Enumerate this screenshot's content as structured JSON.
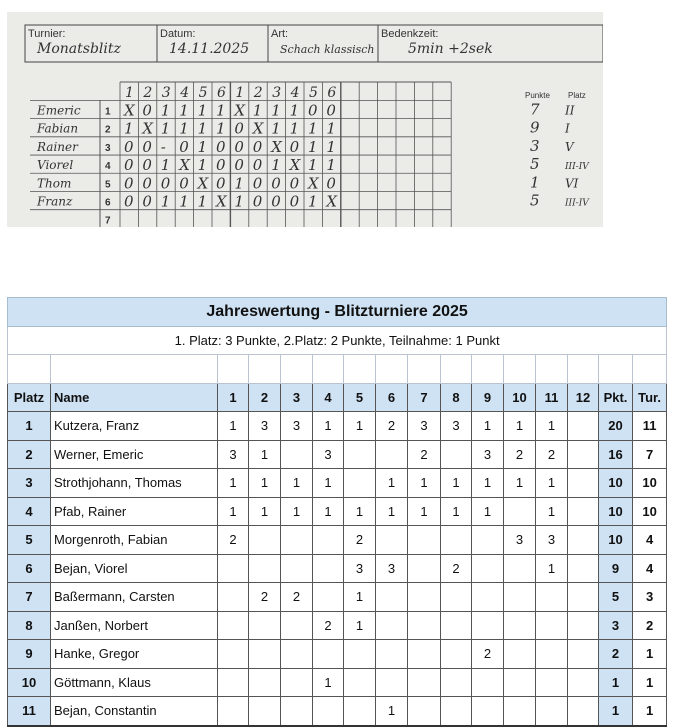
{
  "scoresheet_photo": {
    "fields": [
      {
        "label": "Turnier:",
        "value": "Monatsblitz"
      },
      {
        "label": "Datum:",
        "value": "14.11.2025"
      },
      {
        "label": "Art:",
        "value": "Schach klassisch"
      },
      {
        "label": "Bedenkzeit:",
        "value": "5min +2sek"
      }
    ],
    "round_headers": [
      "1",
      "2",
      "3",
      "4",
      "5",
      "6",
      "1",
      "2",
      "3",
      "4",
      "5",
      "6"
    ],
    "points_header": "Punkte",
    "place_header": "Platz",
    "players": [
      {
        "no": "1",
        "name": "Emeric",
        "results": [
          "X",
          "0",
          "1",
          "1",
          "1",
          "1",
          "X",
          "1",
          "1",
          "1",
          "0",
          "0"
        ],
        "points": "7",
        "place": "II"
      },
      {
        "no": "2",
        "name": "Fabian",
        "results": [
          "1",
          "X",
          "1",
          "1",
          "1",
          "1",
          "0",
          "X",
          "1",
          "1",
          "1",
          "1"
        ],
        "points": "9",
        "place": "I"
      },
      {
        "no": "3",
        "name": "Rainer",
        "results": [
          "0",
          "0",
          "-",
          "0",
          "1",
          "0",
          "0",
          "0",
          "X",
          "0",
          "1",
          "1"
        ],
        "points": "3",
        "place": "V"
      },
      {
        "no": "4",
        "name": "Viorel",
        "results": [
          "0",
          "0",
          "1",
          "X",
          "1",
          "0",
          "0",
          "0",
          "1",
          "X",
          "1",
          "1"
        ],
        "points": "5",
        "place": "III-IV"
      },
      {
        "no": "5",
        "name": "Thom",
        "results": [
          "0",
          "0",
          "0",
          "0",
          "X",
          "0",
          "1",
          "0",
          "0",
          "0",
          "X",
          "0"
        ],
        "points": "1",
        "place": "VI"
      },
      {
        "no": "6",
        "name": "Franz",
        "results": [
          "0",
          "0",
          "1",
          "1",
          "1",
          "X",
          "1",
          "0",
          "0",
          "0",
          "1",
          "X"
        ],
        "points": "5",
        "place": "III-IV"
      },
      {
        "no": "7",
        "name": "",
        "results": [],
        "points": "",
        "place": ""
      }
    ]
  },
  "standings": {
    "title": "Jahreswertung - Blitzturniere 2025",
    "subtitle": "1. Platz: 3 Punkte, 2.Platz: 2 Punkte, Teilnahme: 1 Punkt",
    "headers": {
      "place": "Platz",
      "name": "Name",
      "rounds": [
        "1",
        "2",
        "3",
        "4",
        "5",
        "6",
        "7",
        "8",
        "9",
        "10",
        "11",
        "12"
      ],
      "points": "Pkt.",
      "tournaments": "Tur."
    },
    "rows": [
      {
        "place": "1",
        "name": "Kutzera, Franz",
        "scores": [
          "1",
          "3",
          "3",
          "1",
          "1",
          "2",
          "3",
          "3",
          "1",
          "1",
          "1",
          ""
        ],
        "points": "20",
        "tournaments": "11"
      },
      {
        "place": "2",
        "name": "Werner, Emeric",
        "scores": [
          "3",
          "1",
          "",
          "3",
          "",
          "",
          "2",
          "",
          "3",
          "2",
          "2",
          ""
        ],
        "points": "16",
        "tournaments": "7"
      },
      {
        "place": "3",
        "name": "Strothjohann, Thomas",
        "scores": [
          "1",
          "1",
          "1",
          "1",
          "",
          "1",
          "1",
          "1",
          "1",
          "1",
          "1",
          ""
        ],
        "points": "10",
        "tournaments": "10"
      },
      {
        "place": "4",
        "name": "Pfab, Rainer",
        "scores": [
          "1",
          "1",
          "1",
          "1",
          "1",
          "1",
          "1",
          "1",
          "1",
          "",
          "1",
          ""
        ],
        "points": "10",
        "tournaments": "10"
      },
      {
        "place": "5",
        "name": "Morgenroth, Fabian",
        "scores": [
          "2",
          "",
          "",
          "",
          "2",
          "",
          "",
          "",
          "",
          "3",
          "3",
          ""
        ],
        "points": "10",
        "tournaments": "4"
      },
      {
        "place": "6",
        "name": "Bejan, Viorel",
        "scores": [
          "",
          "",
          "",
          "",
          "3",
          "3",
          "",
          "2",
          "",
          "",
          "1",
          ""
        ],
        "points": "9",
        "tournaments": "4"
      },
      {
        "place": "7",
        "name": "Baßermann, Carsten",
        "scores": [
          "",
          "2",
          "2",
          "",
          "1",
          "",
          "",
          "",
          "",
          "",
          "",
          ""
        ],
        "points": "5",
        "tournaments": "3"
      },
      {
        "place": "8",
        "name": "Janßen, Norbert",
        "scores": [
          "",
          "",
          "",
          "2",
          "1",
          "",
          "",
          "",
          "",
          "",
          "",
          ""
        ],
        "points": "3",
        "tournaments": "2"
      },
      {
        "place": "9",
        "name": "Hanke, Gregor",
        "scores": [
          "",
          "",
          "",
          "",
          "",
          "",
          "",
          "",
          "2",
          "",
          "",
          ""
        ],
        "points": "2",
        "tournaments": "1"
      },
      {
        "place": "10",
        "name": "Göttmann, Klaus",
        "scores": [
          "",
          "",
          "",
          "1",
          "",
          "",
          "",
          "",
          "",
          "",
          "",
          ""
        ],
        "points": "1",
        "tournaments": "1"
      },
      {
        "place": "11",
        "name": "Bejan, Constantin",
        "scores": [
          "",
          "",
          "",
          "",
          "",
          "1",
          "",
          "",
          "",
          "",
          "",
          ""
        ],
        "points": "1",
        "tournaments": "1"
      }
    ]
  }
}
